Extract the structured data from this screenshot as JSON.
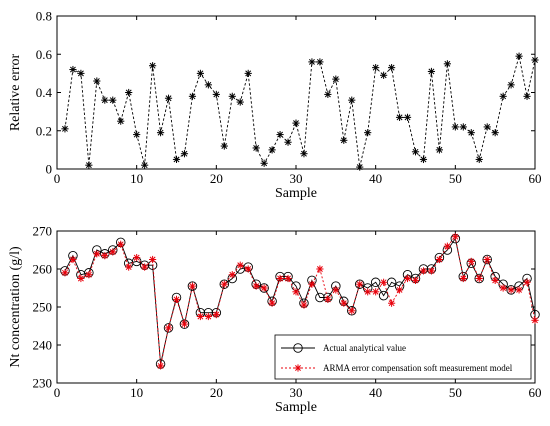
{
  "chart_data": [
    {
      "type": "line",
      "xlabel": "Sample",
      "ylabel": "Relative error",
      "xlim": [
        0,
        60
      ],
      "ylim": [
        0,
        0.8
      ],
      "xticks": [
        "0",
        "10",
        "20",
        "30",
        "40",
        "50",
        "60"
      ],
      "yticks": [
        "0",
        "0.2",
        "0.4",
        "0.6",
        "0.8"
      ],
      "grid": false,
      "series": [
        {
          "style": "black dashed line with asterisk markers",
          "color": "#000000",
          "x": [
            1,
            2,
            3,
            4,
            5,
            6,
            7,
            8,
            9,
            10,
            11,
            12,
            13,
            14,
            15,
            16,
            17,
            18,
            19,
            20,
            21,
            22,
            23,
            24,
            25,
            26,
            27,
            28,
            29,
            30,
            31,
            32,
            33,
            34,
            35,
            36,
            37,
            38,
            39,
            40,
            41,
            42,
            43,
            44,
            45,
            46,
            47,
            48,
            49,
            50,
            51,
            52,
            53,
            54,
            55,
            56,
            57,
            58,
            59,
            60
          ],
          "values": [
            0.21,
            0.52,
            0.5,
            0.02,
            0.46,
            0.36,
            0.36,
            0.25,
            0.4,
            0.18,
            0.02,
            0.54,
            0.19,
            0.37,
            0.05,
            0.08,
            0.38,
            0.5,
            0.44,
            0.39,
            0.12,
            0.38,
            0.35,
            0.5,
            0.11,
            0.03,
            0.1,
            0.18,
            0.14,
            0.24,
            0.08,
            0.56,
            0.56,
            0.39,
            0.47,
            0.15,
            0.36,
            0.01,
            0.19,
            0.53,
            0.49,
            0.53,
            0.27,
            0.27,
            0.09,
            0.05,
            0.51,
            0.1,
            0.55,
            0.22,
            0.22,
            0.19,
            0.05,
            0.22,
            0.19,
            0.38,
            0.44,
            0.59,
            0.38,
            0.57
          ]
        }
      ]
    },
    {
      "type": "line",
      "xlabel": "Sample",
      "ylabel": "Nt concentration (g/l)",
      "xlim": [
        0,
        60
      ],
      "ylim": [
        230,
        270
      ],
      "xticks": [
        "0",
        "10",
        "20",
        "30",
        "40",
        "50",
        "60"
      ],
      "yticks": [
        "230",
        "240",
        "250",
        "260",
        "270"
      ],
      "grid": false,
      "legend_position": "bottom-right",
      "series": [
        {
          "name": "Actual analytical value",
          "style": "black solid line with circle markers",
          "color": "#000000",
          "x": [
            1,
            2,
            3,
            4,
            5,
            6,
            7,
            8,
            9,
            10,
            11,
            12,
            13,
            14,
            15,
            16,
            17,
            18,
            19,
            20,
            21,
            22,
            23,
            24,
            25,
            26,
            27,
            28,
            29,
            30,
            31,
            32,
            33,
            34,
            35,
            36,
            37,
            38,
            39,
            40,
            41,
            42,
            43,
            44,
            45,
            46,
            47,
            48,
            49,
            50,
            51,
            52,
            53,
            54,
            55,
            56,
            57,
            58,
            59,
            60
          ],
          "values": [
            259.5,
            263.5,
            258.5,
            259,
            265,
            264,
            265,
            267,
            261.5,
            262,
            261,
            261,
            235,
            244.5,
            252.5,
            245.5,
            255.5,
            248.5,
            248.5,
            248.5,
            256,
            257.5,
            260,
            260.5,
            256,
            255,
            251.5,
            258,
            258,
            255.5,
            251,
            257,
            252.5,
            252.5,
            255.5,
            251.5,
            249,
            256,
            255,
            256.5,
            253,
            256.5,
            255.5,
            258.5,
            257.5,
            260,
            260,
            263,
            265,
            268,
            258,
            261.5,
            257.5,
            262.5,
            258,
            256,
            254.5,
            255.5,
            257.5,
            248
          ]
        },
        {
          "name": "ARMA error compensation soft measurement model",
          "style": "red dotted line with asterisk markers",
          "color": "#e8000b",
          "x": [
            1,
            2,
            3,
            4,
            5,
            6,
            7,
            8,
            9,
            10,
            11,
            12,
            13,
            14,
            15,
            16,
            17,
            18,
            19,
            20,
            21,
            22,
            23,
            24,
            25,
            26,
            27,
            28,
            29,
            30,
            31,
            32,
            33,
            34,
            35,
            36,
            37,
            38,
            39,
            40,
            41,
            42,
            43,
            44,
            45,
            46,
            47,
            48,
            49,
            50,
            51,
            52,
            53,
            54,
            55,
            56,
            57,
            58,
            59,
            60
          ],
          "values": [
            259,
            262.5,
            257.5,
            258.5,
            264,
            263.5,
            264.5,
            266.5,
            260.5,
            263,
            260.5,
            262.5,
            234.5,
            244.5,
            252,
            245.5,
            255.5,
            247.5,
            247.5,
            248,
            256,
            258.5,
            261,
            260,
            255.5,
            255,
            251,
            257.5,
            257.5,
            254,
            250.5,
            256,
            260,
            252,
            254.5,
            251,
            249,
            256,
            254,
            254,
            256.5,
            251,
            254.5,
            257.5,
            257,
            259.5,
            259.5,
            262.5,
            266,
            268.5,
            257.5,
            262,
            257.5,
            262.5,
            257,
            255,
            254.5,
            254.5,
            256.5,
            246.5
          ]
        }
      ]
    }
  ]
}
